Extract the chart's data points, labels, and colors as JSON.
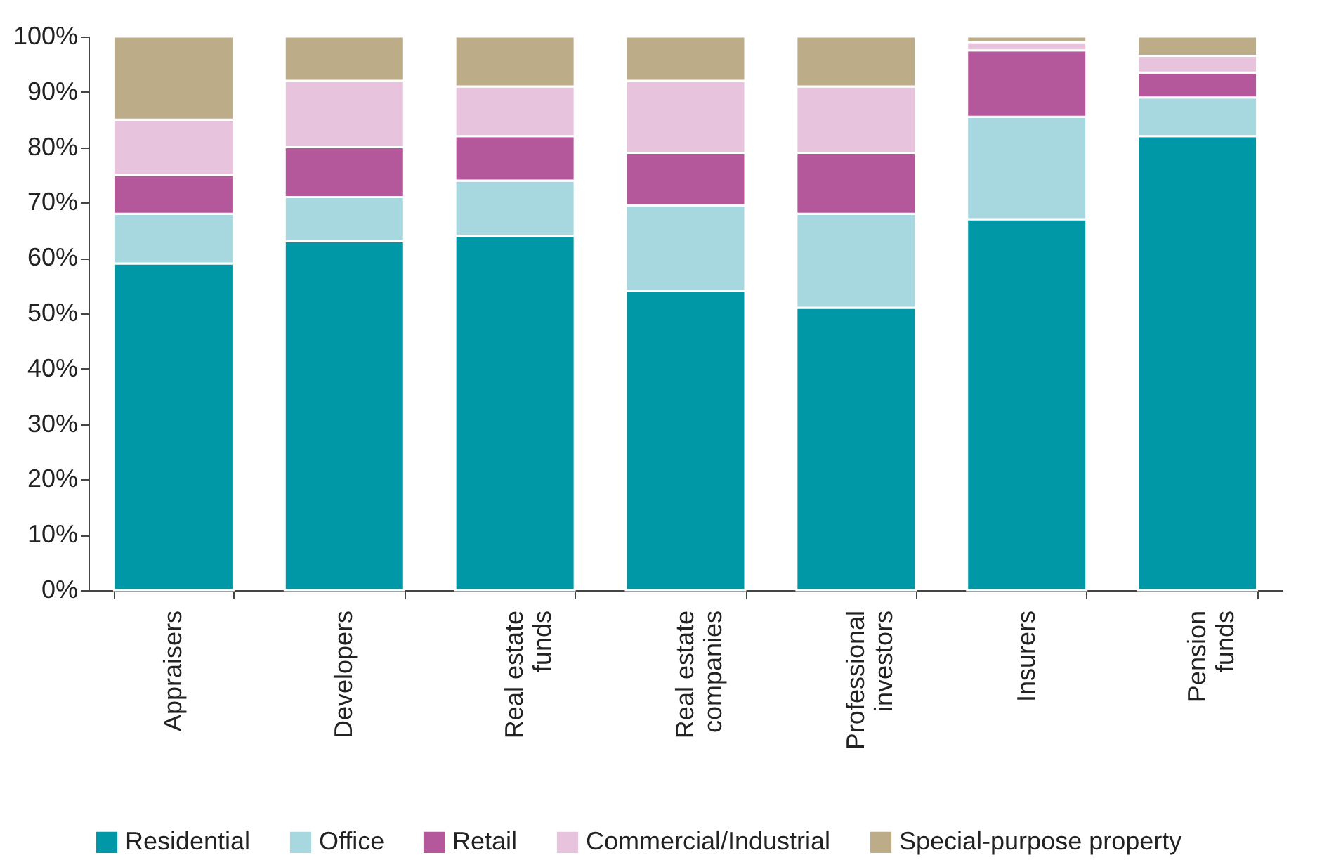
{
  "chart_data": {
    "type": "bar",
    "stacked": true,
    "categories": [
      "Appraisers",
      "Developers",
      "Real estate funds",
      "Real estate companies",
      "Professional investors",
      "Insurers",
      "Pension funds"
    ],
    "series": [
      {
        "name": "Residential",
        "color": "#0097a7",
        "values": [
          59,
          63,
          64,
          54,
          51,
          67,
          82
        ]
      },
      {
        "name": "Office",
        "color": "#a8d8df",
        "values": [
          9,
          8,
          10,
          15.5,
          17,
          18.5,
          7
        ]
      },
      {
        "name": "Retail",
        "color": "#b4589b",
        "values": [
          7,
          9,
          8,
          9.5,
          11,
          12,
          4.5
        ]
      },
      {
        "name": "Commercial/Industrial",
        "color": "#e8c3dd",
        "values": [
          10,
          12,
          9,
          13,
          12,
          1.5,
          3
        ]
      },
      {
        "name": "Special-purpose property",
        "color": "#bcad88",
        "values": [
          15,
          8,
          9,
          8,
          9,
          1,
          3.5
        ]
      }
    ],
    "ylim": [
      0,
      100
    ],
    "yticks": [
      {
        "value": 0,
        "label": "0%"
      },
      {
        "value": 10,
        "label": "10%"
      },
      {
        "value": 20,
        "label": "20%"
      },
      {
        "value": 30,
        "label": "30%"
      },
      {
        "value": 40,
        "label": "40%"
      },
      {
        "value": 50,
        "label": "50%"
      },
      {
        "value": 60,
        "label": "60%"
      },
      {
        "value": 70,
        "label": "70%"
      },
      {
        "value": 80,
        "label": "80%"
      },
      {
        "value": 90,
        "label": "90%"
      },
      {
        "value": 100,
        "label": "100%"
      }
    ],
    "grid": false,
    "legend": "bottom"
  }
}
